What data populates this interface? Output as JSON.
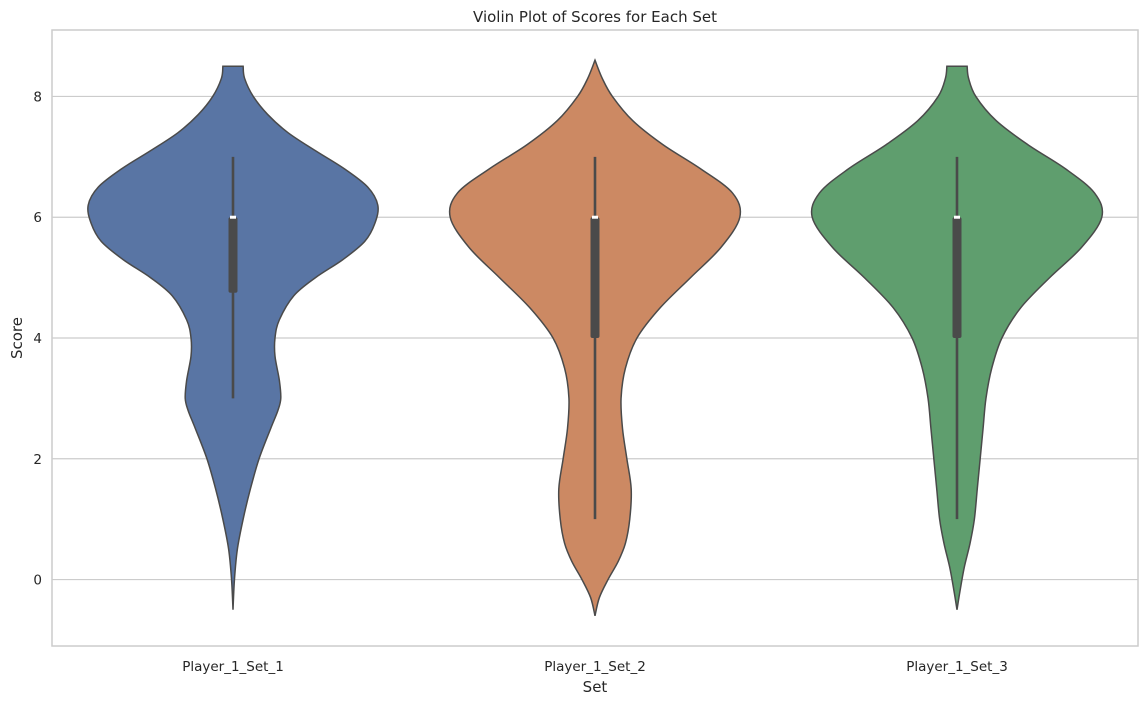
{
  "chart_data": {
    "type": "violin",
    "title": "Violin Plot of Scores for Each Set",
    "xlabel": "Set",
    "ylabel": "Score",
    "categories": [
      "Player_1_Set_1",
      "Player_1_Set_2",
      "Player_1_Set_3"
    ],
    "ylim": [
      -1.1,
      9.1
    ],
    "yticks": [
      0,
      2,
      4,
      6,
      8
    ],
    "grid": true,
    "series": [
      {
        "category": "Player_1_Set_1",
        "color": "#5975a4",
        "min": 3,
        "q1": 4.75,
        "median": 6,
        "q3": 6,
        "max": 7,
        "kde_range": [
          -0.5,
          8.5
        ],
        "density": [
          [
            -0.5,
            0.0
          ],
          [
            0.0,
            0.01
          ],
          [
            0.5,
            0.03
          ],
          [
            1.0,
            0.07
          ],
          [
            1.5,
            0.12
          ],
          [
            2.0,
            0.18
          ],
          [
            2.5,
            0.26
          ],
          [
            2.8,
            0.31
          ],
          [
            3.0,
            0.33
          ],
          [
            3.3,
            0.32
          ],
          [
            3.7,
            0.29
          ],
          [
            4.0,
            0.29
          ],
          [
            4.3,
            0.32
          ],
          [
            4.7,
            0.42
          ],
          [
            5.0,
            0.57
          ],
          [
            5.3,
            0.76
          ],
          [
            5.6,
            0.91
          ],
          [
            5.9,
            0.98
          ],
          [
            6.2,
            1.0
          ],
          [
            6.5,
            0.93
          ],
          [
            6.8,
            0.77
          ],
          [
            7.1,
            0.57
          ],
          [
            7.4,
            0.38
          ],
          [
            7.7,
            0.24
          ],
          [
            8.0,
            0.14
          ],
          [
            8.3,
            0.08
          ],
          [
            8.5,
            0.07
          ]
        ]
      },
      {
        "category": "Player_1_Set_2",
        "color": "#cc8963",
        "min": 1,
        "q1": 4,
        "median": 6,
        "q3": 6,
        "max": 7,
        "kde_range": [
          -0.6,
          8.6
        ],
        "density": [
          [
            -0.6,
            0.0
          ],
          [
            -0.3,
            0.03
          ],
          [
            0.0,
            0.09
          ],
          [
            0.3,
            0.16
          ],
          [
            0.6,
            0.21
          ],
          [
            1.0,
            0.24
          ],
          [
            1.5,
            0.25
          ],
          [
            2.0,
            0.22
          ],
          [
            2.5,
            0.19
          ],
          [
            3.0,
            0.18
          ],
          [
            3.5,
            0.21
          ],
          [
            4.0,
            0.29
          ],
          [
            4.5,
            0.45
          ],
          [
            5.0,
            0.66
          ],
          [
            5.5,
            0.87
          ],
          [
            6.0,
            1.0
          ],
          [
            6.4,
            0.95
          ],
          [
            6.8,
            0.73
          ],
          [
            7.2,
            0.47
          ],
          [
            7.6,
            0.26
          ],
          [
            8.0,
            0.12
          ],
          [
            8.3,
            0.05
          ],
          [
            8.6,
            0.0
          ]
        ]
      },
      {
        "category": "Player_1_Set_3",
        "color": "#5f9e6e",
        "min": 1,
        "q1": 4,
        "median": 6,
        "q3": 6,
        "max": 7,
        "kde_range": [
          -0.5,
          8.5
        ],
        "density": [
          [
            -0.5,
            0.0
          ],
          [
            -0.2,
            0.02
          ],
          [
            0.2,
            0.05
          ],
          [
            0.6,
            0.09
          ],
          [
            1.0,
            0.12
          ],
          [
            1.5,
            0.14
          ],
          [
            2.0,
            0.16
          ],
          [
            2.5,
            0.18
          ],
          [
            3.0,
            0.2
          ],
          [
            3.5,
            0.24
          ],
          [
            4.0,
            0.31
          ],
          [
            4.5,
            0.44
          ],
          [
            5.0,
            0.64
          ],
          [
            5.5,
            0.86
          ],
          [
            6.0,
            1.0
          ],
          [
            6.4,
            0.95
          ],
          [
            6.8,
            0.75
          ],
          [
            7.2,
            0.49
          ],
          [
            7.6,
            0.27
          ],
          [
            8.0,
            0.13
          ],
          [
            8.3,
            0.08
          ],
          [
            8.5,
            0.07
          ]
        ]
      }
    ]
  }
}
